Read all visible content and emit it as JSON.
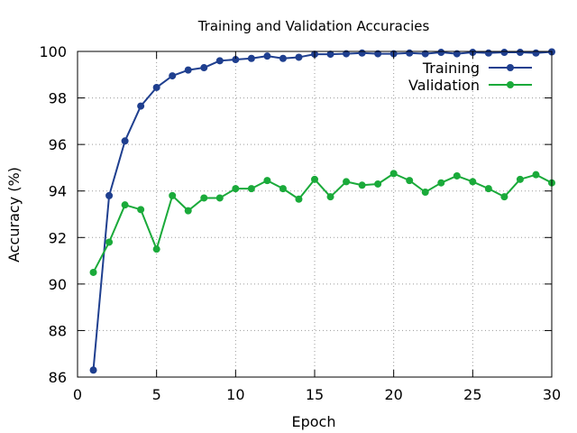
{
  "chart_data": {
    "type": "line",
    "title": "Training and Validation Accuracies",
    "xlabel": "Epoch",
    "ylabel": "Accuracy (%)",
    "xlim": [
      0,
      30
    ],
    "ylim": [
      86,
      100
    ],
    "xticks": [
      "0",
      "5",
      "10",
      "15",
      "20",
      "25",
      "30"
    ],
    "yticks": [
      "86",
      "88",
      "90",
      "92",
      "94",
      "96",
      "98",
      "100"
    ],
    "grid": true,
    "legend_position": "top-right",
    "x": [
      1,
      2,
      3,
      4,
      5,
      6,
      7,
      8,
      9,
      10,
      11,
      12,
      13,
      14,
      15,
      16,
      17,
      18,
      19,
      20,
      21,
      22,
      23,
      24,
      25,
      26,
      27,
      28,
      29,
      30
    ],
    "series": [
      {
        "name": "Training",
        "color": "#1f3f8f",
        "values": [
          86.3,
          93.8,
          96.15,
          97.65,
          98.45,
          98.95,
          99.2,
          99.3,
          99.6,
          99.65,
          99.7,
          99.8,
          99.7,
          99.75,
          99.88,
          99.88,
          99.9,
          99.93,
          99.9,
          99.9,
          99.93,
          99.9,
          99.96,
          99.9,
          99.96,
          99.93,
          99.96,
          99.96,
          99.93,
          99.98
        ]
      },
      {
        "name": "Validation",
        "color": "#1aaa3a",
        "values": [
          90.5,
          91.8,
          93.4,
          93.2,
          91.5,
          93.8,
          93.15,
          93.7,
          93.7,
          94.1,
          94.1,
          94.45,
          94.1,
          93.65,
          94.5,
          93.75,
          94.4,
          94.25,
          94.3,
          94.75,
          94.45,
          93.95,
          94.35,
          94.65,
          94.4,
          94.1,
          93.75,
          94.5,
          94.7,
          94.35
        ]
      }
    ]
  }
}
